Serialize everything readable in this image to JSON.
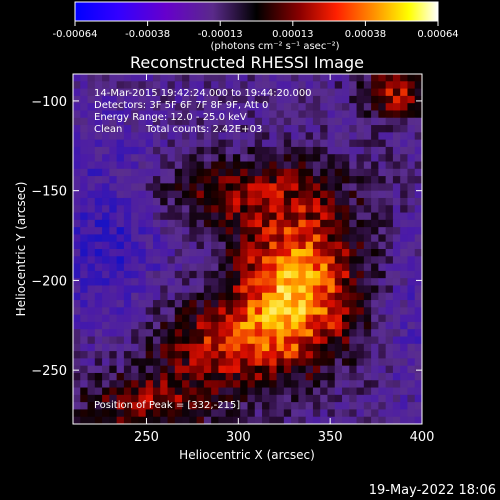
{
  "chart_data": {
    "type": "heatmap",
    "title": "Reconstructed RHESSI Image",
    "xlabel": "Heliocentric X (arcsec)",
    "ylabel": "Heliocentric Y (arcsec)",
    "xlim": [
      210,
      400
    ],
    "ylim": [
      -280,
      -85
    ],
    "x_ticks": [
      250,
      300,
      350,
      400
    ],
    "y_ticks": [
      -100,
      -150,
      -200,
      -250
    ],
    "colorbar": {
      "min": -0.00064,
      "max": 0.00064,
      "ticks": [
        "-0.00064",
        "-0.00038",
        "-0.00013",
        "0.00013",
        "0.00038",
        "0.00064"
      ],
      "unit_label": "(photons cm⁻² s⁻¹ asec⁻²)",
      "colors": [
        "#0000ff",
        "#6600cc",
        "#8a2be2",
        "#000000",
        "#8b0000",
        "#ff0000",
        "#ff8c00",
        "#ffff00",
        "#ffffff"
      ]
    },
    "annotations": {
      "time_range": "14-Mar-2015 19:42:24.000 to 19:44:20.000",
      "detectors": "Detectors: 3F 5F 6F 7F 8F 9F, Att 0",
      "energy": "Energy Range: 12.0 - 25.0 keV",
      "method": "Clean",
      "total_counts": "Total counts: 2.42E+03",
      "peak": "Position of Peak = [332,-215]"
    },
    "peak": [
      332,
      -215
    ],
    "grid": false,
    "legend": "colorbar-top"
  },
  "footer": {
    "date": "19-May-2022 18:06"
  }
}
